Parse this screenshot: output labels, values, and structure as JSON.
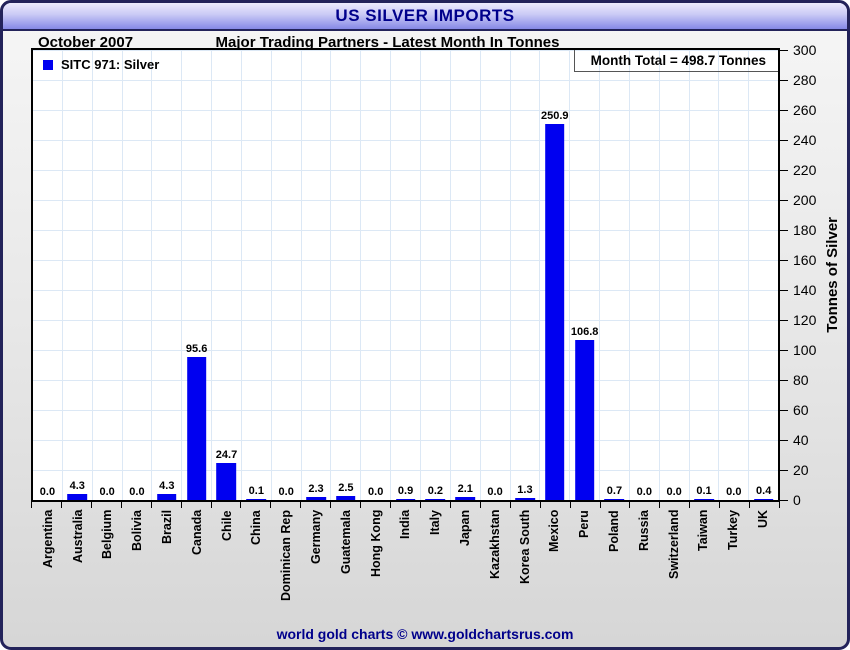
{
  "title": "US SILVER IMPORTS",
  "header": {
    "date_label": "October 2007",
    "subtitle": "Major Trading Partners - Latest Month In Tonnes"
  },
  "legend": {
    "label": "SITC 971: Silver"
  },
  "annotation": {
    "month_total": "Month Total = 498.7 Tonnes"
  },
  "footer": {
    "credit": "world gold charts © www.goldchartsrus.com"
  },
  "colors": {
    "bar": "#0000f0",
    "navy_text": "#00008b",
    "frame_border": "#23235a",
    "grid": "#dce8f5",
    "plot_bg": "#ffffff",
    "titlebar_top": "#ecebfd",
    "titlebar_bottom": "#8689e6"
  },
  "chart_data": {
    "type": "bar",
    "title": "US SILVER IMPORTS",
    "subtitle": "Major Trading Partners - Latest Month In Tonnes",
    "period": "October 2007",
    "legend_entries": [
      "SITC 971: Silver"
    ],
    "legend_position": "top-left",
    "annotation": "Month Total = 498.7 Tonnes",
    "month_total": 498.7,
    "xlabel": "",
    "ylabel": "Tonnes of Silver",
    "ylim": [
      0,
      300
    ],
    "ytick_step": 20,
    "grid": true,
    "y_axis_side": "right",
    "categories": [
      "Argentina",
      "Australia",
      "Belgium",
      "Bolivia",
      "Brazil",
      "Canada",
      "Chile",
      "China",
      "Dominican Rep",
      "Germany",
      "Guatemala",
      "Hong Kong",
      "India",
      "Italy",
      "Japan",
      "Kazakhstan",
      "Korea South",
      "Mexico",
      "Peru",
      "Poland",
      "Russia",
      "Switzerland",
      "Taiwan",
      "Turkey",
      "UK"
    ],
    "values": [
      0.0,
      4.3,
      0.0,
      0.0,
      4.3,
      95.6,
      24.7,
      0.1,
      0.0,
      2.3,
      2.5,
      0.0,
      0.9,
      0.2,
      2.1,
      0.0,
      1.3,
      250.9,
      106.8,
      0.7,
      0.0,
      0.0,
      0.1,
      0.0,
      0.4
    ]
  }
}
